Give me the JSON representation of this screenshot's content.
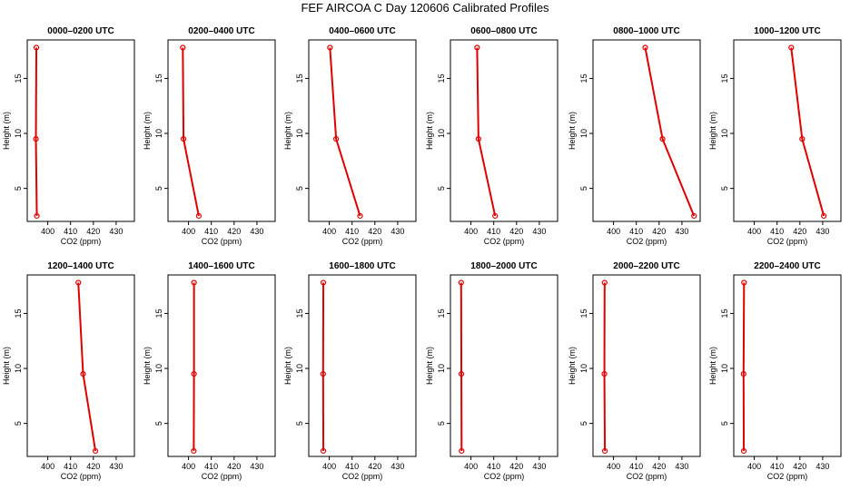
{
  "figure_title": "FEF AIRCOA C  Day 120606  Calibrated Profiles",
  "colors": {
    "series": "#e00000",
    "axes": "#000000"
  },
  "chart_data": [
    {
      "type": "line",
      "title": "0000–0200 UTC",
      "xlabel": "CO2 (ppm)",
      "ylabel": "Height (m)",
      "xlim": [
        391,
        438
      ],
      "ylim": [
        2,
        18.5
      ],
      "xticks": [
        400,
        410,
        420,
        430
      ],
      "yticks": [
        5,
        10,
        15
      ],
      "x": [
        395.2,
        394.8,
        395.0
      ],
      "y": [
        2.5,
        9.5,
        17.8
      ]
    },
    {
      "type": "line",
      "title": "0200–0400 UTC",
      "xlabel": "CO2 (ppm)",
      "ylabel": "Height (m)",
      "xlim": [
        391,
        438
      ],
      "ylim": [
        2,
        18.5
      ],
      "xticks": [
        400,
        410,
        420,
        430
      ],
      "yticks": [
        5,
        10,
        15
      ],
      "x": [
        404.5,
        397.8,
        397.5
      ],
      "y": [
        2.5,
        9.5,
        17.8
      ]
    },
    {
      "type": "line",
      "title": "0400–0600 UTC",
      "xlabel": "CO2 (ppm)",
      "ylabel": "Height (m)",
      "xlim": [
        391,
        438
      ],
      "ylim": [
        2,
        18.5
      ],
      "xticks": [
        400,
        410,
        420,
        430
      ],
      "yticks": [
        5,
        10,
        15
      ],
      "x": [
        413.5,
        403.0,
        400.3
      ],
      "y": [
        2.5,
        9.5,
        17.8
      ]
    },
    {
      "type": "line",
      "title": "0600–0800 UTC",
      "xlabel": "CO2 (ppm)",
      "ylabel": "Height (m)",
      "xlim": [
        391,
        438
      ],
      "ylim": [
        2,
        18.5
      ],
      "xticks": [
        400,
        410,
        420,
        430
      ],
      "yticks": [
        5,
        10,
        15
      ],
      "x": [
        410.6,
        403.3,
        402.7
      ],
      "y": [
        2.5,
        9.5,
        17.8
      ]
    },
    {
      "type": "line",
      "title": "0800–1000 UTC",
      "xlabel": "CO2 (ppm)",
      "ylabel": "Height (m)",
      "xlim": [
        391,
        438
      ],
      "ylim": [
        2,
        18.5
      ],
      "xticks": [
        400,
        410,
        420,
        430
      ],
      "yticks": [
        5,
        10,
        15
      ],
      "x": [
        435.3,
        421.5,
        413.9
      ],
      "y": [
        2.5,
        9.5,
        17.8
      ]
    },
    {
      "type": "line",
      "title": "1000–1200 UTC",
      "xlabel": "CO2 (ppm)",
      "ylabel": "Height (m)",
      "xlim": [
        391,
        438
      ],
      "ylim": [
        2,
        18.5
      ],
      "xticks": [
        400,
        410,
        420,
        430
      ],
      "yticks": [
        5,
        10,
        15
      ],
      "x": [
        430.5,
        421.0,
        416.2
      ],
      "y": [
        2.5,
        9.5,
        17.8
      ]
    },
    {
      "type": "line",
      "title": "1200–1400 UTC",
      "xlabel": "CO2 (ppm)",
      "ylabel": "Height (m)",
      "xlim": [
        391,
        438
      ],
      "ylim": [
        2,
        18.5
      ],
      "xticks": [
        400,
        410,
        420,
        430
      ],
      "yticks": [
        5,
        10,
        15
      ],
      "x": [
        420.9,
        415.5,
        413.4
      ],
      "y": [
        2.5,
        9.5,
        17.8
      ]
    },
    {
      "type": "line",
      "title": "1400–1600 UTC",
      "xlabel": "CO2 (ppm)",
      "ylabel": "Height (m)",
      "xlim": [
        391,
        438
      ],
      "ylim": [
        2,
        18.5
      ],
      "xticks": [
        400,
        410,
        420,
        430
      ],
      "yticks": [
        5,
        10,
        15
      ],
      "x": [
        402.3,
        402.4,
        402.4
      ],
      "y": [
        2.5,
        9.5,
        17.8
      ]
    },
    {
      "type": "line",
      "title": "1600–1800 UTC",
      "xlabel": "CO2 (ppm)",
      "ylabel": "Height (m)",
      "xlim": [
        391,
        438
      ],
      "ylim": [
        2,
        18.5
      ],
      "xticks": [
        400,
        410,
        420,
        430
      ],
      "yticks": [
        5,
        10,
        15
      ],
      "x": [
        397.4,
        397.3,
        397.4
      ],
      "y": [
        2.5,
        9.5,
        17.8
      ]
    },
    {
      "type": "line",
      "title": "1800–2000 UTC",
      "xlabel": "CO2 (ppm)",
      "ylabel": "Height (m)",
      "xlim": [
        391,
        438
      ],
      "ylim": [
        2,
        18.5
      ],
      "xticks": [
        400,
        410,
        420,
        430
      ],
      "yticks": [
        5,
        10,
        15
      ],
      "x": [
        395.9,
        395.8,
        395.7
      ],
      "y": [
        2.5,
        9.5,
        17.8
      ]
    },
    {
      "type": "line",
      "title": "2000–2200 UTC",
      "xlabel": "CO2 (ppm)",
      "ylabel": "Height (m)",
      "xlim": [
        391,
        438
      ],
      "ylim": [
        2,
        18.5
      ],
      "xticks": [
        400,
        410,
        420,
        430
      ],
      "yticks": [
        5,
        10,
        15
      ],
      "x": [
        396.2,
        396.0,
        396.1
      ],
      "y": [
        2.5,
        9.5,
        17.8
      ]
    },
    {
      "type": "line",
      "title": "2200–2400 UTC",
      "xlabel": "CO2 (ppm)",
      "ylabel": "Height (m)",
      "xlim": [
        391,
        438
      ],
      "ylim": [
        2,
        18.5
      ],
      "xticks": [
        400,
        410,
        420,
        430
      ],
      "yticks": [
        5,
        10,
        15
      ],
      "x": [
        395.4,
        395.3,
        395.5
      ],
      "y": [
        2.5,
        9.5,
        17.8
      ]
    }
  ]
}
